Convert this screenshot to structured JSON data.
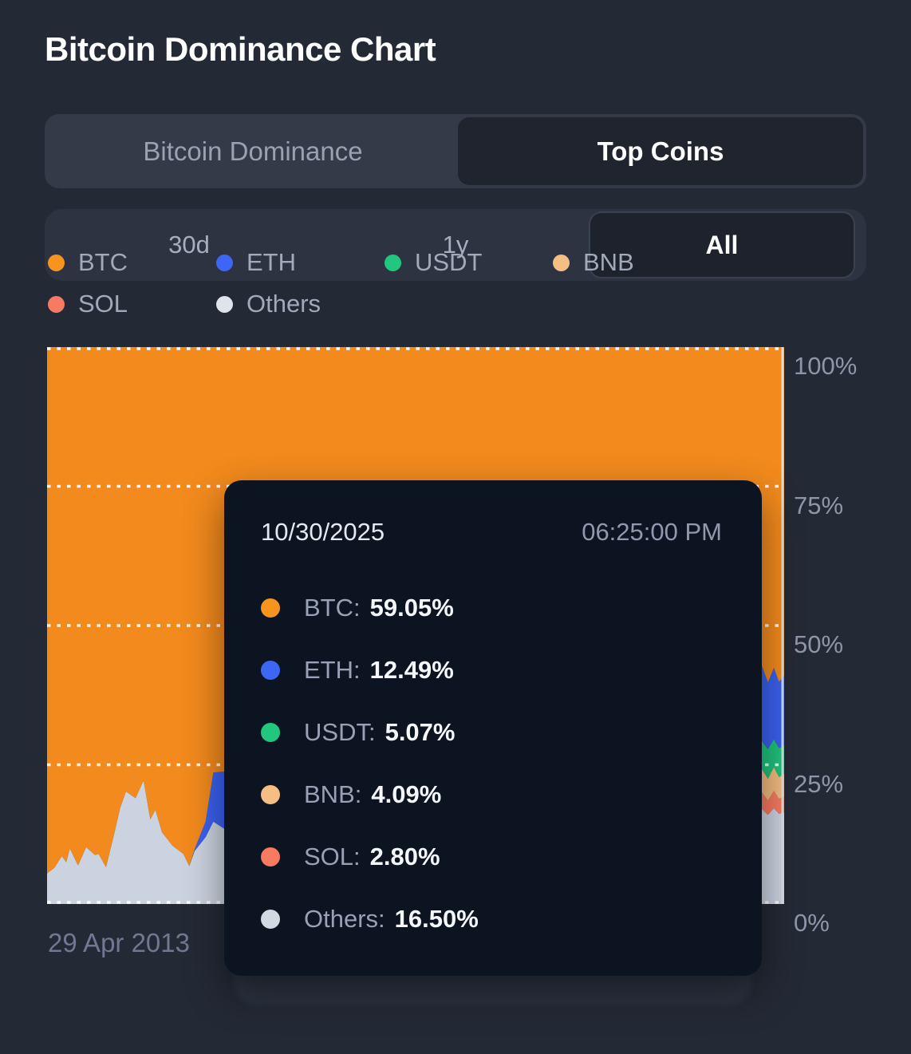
{
  "header": {
    "title": "Bitcoin Dominance Chart"
  },
  "tabs": [
    {
      "label": "Bitcoin Dominance",
      "active": false
    },
    {
      "label": "Top Coins",
      "active": true
    }
  ],
  "time_ranges": {
    "options": [
      "30d",
      "1y",
      "All"
    ],
    "selected": "All"
  },
  "legend": [
    {
      "label": "BTC",
      "color": "#F7941E"
    },
    {
      "label": "ETH",
      "color": "#3E66F5"
    },
    {
      "label": "USDT",
      "color": "#21C77E"
    },
    {
      "label": "BNB",
      "color": "#F5BF83"
    },
    {
      "label": "SOL",
      "color": "#F87A62"
    },
    {
      "label": "Others",
      "color": "#DFE3EB"
    }
  ],
  "tooltip": {
    "date": "10/30/2025",
    "time": "06:25:00 PM",
    "rows": [
      {
        "label": "BTC:",
        "value": "59.05%",
        "color": "#F7941E"
      },
      {
        "label": "ETH:",
        "value": "12.49%",
        "color": "#3E66F5"
      },
      {
        "label": "USDT:",
        "value": "5.07%",
        "color": "#21C77E"
      },
      {
        "label": "BNB:",
        "value": "4.09%",
        "color": "#F5BF83"
      },
      {
        "label": "SOL:",
        "value": "2.80%",
        "color": "#F87A62"
      },
      {
        "label": "Others:",
        "value": "16.50%",
        "color": "#D3D9E3"
      }
    ]
  },
  "y_axis": {
    "ticks": [
      "100%",
      "75%",
      "50%",
      "25%",
      "0%"
    ]
  },
  "x_axis": {
    "first_label": "29 Apr 2013"
  },
  "colors": {
    "background": "#242936",
    "tooltip_background": "#0D1421",
    "gridline": "#FFFFFF",
    "crosshair": "#DCDFE6"
  },
  "chart_data": {
    "type": "area",
    "stacked": true,
    "unit": "%",
    "title": "Bitcoin Dominance Chart",
    "ylim": [
      0,
      100
    ],
    "y_ticks_pct": [
      100,
      75,
      50,
      25,
      0
    ],
    "grid": "dotted-horizontal",
    "legend_position": "top",
    "x_range_labels": [
      "29 Apr 2013",
      "10/30/2025 06:25:00 PM"
    ],
    "hovered_point": {
      "date": "10/30/2025",
      "time": "06:25:00 PM",
      "values": {
        "BTC": 59.05,
        "ETH": 12.49,
        "USDT": 5.07,
        "BNB": 4.09,
        "SOL": 2.8,
        "Others": 16.5
      }
    },
    "stack_order_bottom_to_top": [
      "Others",
      "SOL",
      "BNB",
      "USDT",
      "ETH",
      "BTC"
    ],
    "colors": {
      "BTC": "#F28A1D",
      "ETH": "#3B61F0",
      "USDT": "#1FC37C",
      "BNB": "#F2BC80",
      "SOL": "#F87A62",
      "Others": "#CCD3E0"
    },
    "t": [
      0,
      0.01,
      0.02,
      0.026,
      0.031,
      0.042,
      0.053,
      0.065,
      0.07,
      0.08,
      0.091,
      0.099,
      0.107,
      0.12,
      0.131,
      0.14,
      0.147,
      0.156,
      0.17,
      0.185,
      0.193,
      0.2,
      0.215,
      0.2255,
      0.2405,
      0.27,
      0.3,
      0.345,
      0.37,
      0.42,
      0.47,
      0.52,
      0.56,
      0.6,
      0.64,
      0.66,
      0.7,
      0.75,
      0.8,
      0.85,
      0.9,
      0.93,
      0.955,
      0.97,
      0.978,
      0.986,
      0.993,
      1
    ],
    "series": {
      "Others": [
        5.5,
        6.5,
        8.6,
        7.5,
        10,
        6.9,
        10.2,
        8.8,
        9,
        6.6,
        12.6,
        17.2,
        20.2,
        19,
        22.2,
        15.2,
        16.9,
        12.9,
        10.5,
        9,
        6.8,
        9.5,
        12,
        14.8,
        13.5,
        16,
        20,
        30,
        35,
        28,
        22,
        18,
        15,
        14,
        22,
        24,
        20,
        17,
        15,
        14,
        15,
        16,
        17,
        17,
        16,
        17.2,
        16.2,
        16.5
      ],
      "SOL": [
        0,
        0,
        0,
        0,
        0,
        0,
        0,
        0,
        0,
        0,
        0,
        0,
        0,
        0,
        0,
        0,
        0,
        0,
        0,
        0,
        0,
        0,
        0,
        0,
        0,
        0,
        0,
        0,
        0,
        0,
        0,
        0,
        0,
        0.3,
        2.5,
        2,
        3.5,
        1.5,
        1,
        1.5,
        2.5,
        3,
        3.2,
        3,
        2.6,
        3.1,
        2.7,
        2.8
      ],
      "BNB": [
        0,
        0,
        0,
        0,
        0,
        0,
        0,
        0,
        0,
        0,
        0,
        0,
        0,
        0,
        0,
        0,
        0,
        0,
        0,
        0,
        0,
        0,
        0,
        0,
        0,
        0,
        0,
        0,
        0.6,
        1.5,
        2,
        2.5,
        2,
        3,
        6,
        5.5,
        4.5,
        4.5,
        4,
        3.5,
        3.5,
        3.8,
        4,
        4.2,
        3.9,
        4.3,
        3.9,
        4.09
      ],
      "USDT": [
        0,
        0,
        0,
        0,
        0,
        0,
        0,
        0,
        0,
        0,
        0,
        0,
        0,
        0,
        0,
        0,
        0,
        0,
        0,
        0,
        0,
        0,
        0,
        0,
        0,
        0.3,
        0.5,
        1,
        1.2,
        2,
        2.5,
        3.5,
        4,
        3.5,
        3,
        4,
        4,
        6.5,
        8.5,
        7,
        6,
        5.5,
        5.2,
        5,
        5.3,
        5,
        5.2,
        5.07
      ],
      "ETH": [
        0,
        0,
        0,
        0,
        0,
        0,
        0,
        0,
        0,
        0,
        0,
        0,
        0,
        0,
        0,
        0,
        0,
        0,
        0,
        0,
        0,
        0.3,
        2.8,
        8.8,
        10.3,
        14,
        20,
        28,
        30,
        15,
        10,
        9.5,
        11,
        11,
        16,
        18,
        19,
        16,
        17,
        18,
        14,
        12,
        13,
        13.5,
        12,
        12.8,
        11.9,
        12.49
      ],
      "BTC": [
        94.5,
        93.5,
        91.4,
        92.5,
        90,
        93.1,
        89.8,
        91.2,
        91,
        93.4,
        87.4,
        82.8,
        79.8,
        81,
        77.8,
        84.8,
        83.1,
        87.1,
        89.5,
        91,
        93.2,
        90.2,
        85.2,
        76.4,
        76.2,
        69.7,
        59.5,
        41,
        33.2,
        53.5,
        63.5,
        66.5,
        68,
        68.2,
        50.5,
        46.5,
        49,
        54.5,
        54.5,
        56,
        59,
        59.7,
        57.6,
        57.3,
        60.2,
        57.6,
        60.1,
        59.05
      ]
    }
  }
}
